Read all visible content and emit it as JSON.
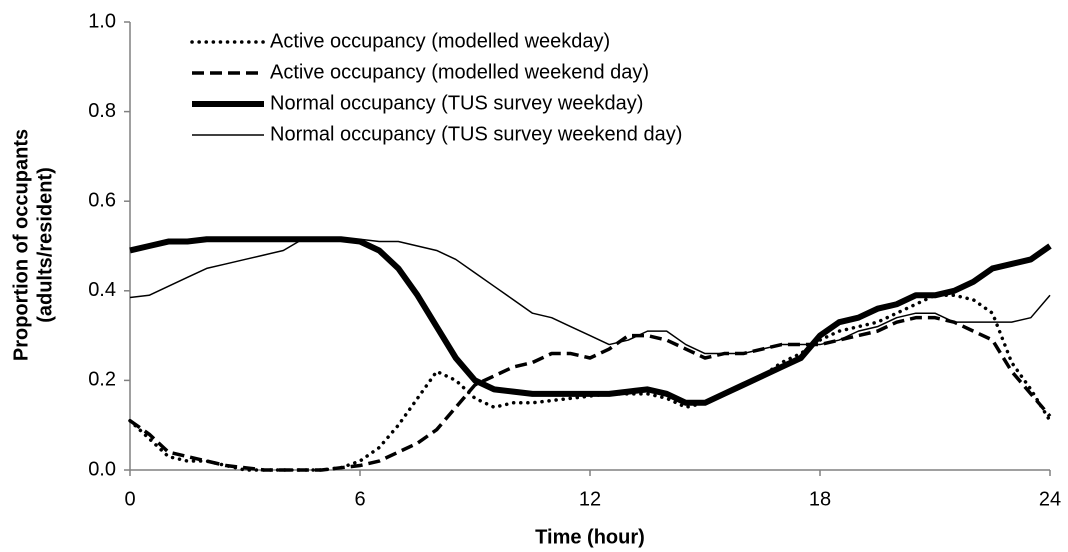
{
  "chart_data": {
    "type": "line",
    "x_label": "Time (hour)",
    "y_label": [
      "Proportion of occupants",
      "(adults/resident)"
    ],
    "x": [
      0,
      0.5,
      1,
      1.5,
      2,
      2.5,
      3,
      3.5,
      4,
      4.5,
      5,
      5.5,
      6,
      6.5,
      7,
      7.5,
      8,
      8.5,
      9,
      9.5,
      10,
      10.5,
      11,
      11.5,
      12,
      12.5,
      13,
      13.5,
      14,
      14.5,
      15,
      15.5,
      16,
      16.5,
      17,
      17.5,
      18,
      18.5,
      19,
      19.5,
      20,
      20.5,
      21,
      21.5,
      22,
      22.5,
      23,
      23.5,
      24
    ],
    "xlim": [
      0,
      24
    ],
    "xticks": [
      0,
      6,
      12,
      18,
      24
    ],
    "ylim": [
      0,
      1
    ],
    "yticks": [
      {
        "value": 0,
        "label": "0.0"
      },
      0.2,
      0.4,
      0.6,
      0.8,
      {
        "value": 1,
        "label": "1.0"
      }
    ],
    "legend": "top-left",
    "series": [
      {
        "name": "Active occupancy (modelled weekday)",
        "color": "#000000",
        "line_style": "dotted",
        "values": [
          0.11,
          0.07,
          0.03,
          0.02,
          0.02,
          0.01,
          0.0,
          0.0,
          0.0,
          0.0,
          0.0,
          0.005,
          0.02,
          0.05,
          0.1,
          0.16,
          0.22,
          0.2,
          0.16,
          0.14,
          0.15,
          0.15,
          0.155,
          0.16,
          0.165,
          0.17,
          0.17,
          0.17,
          0.16,
          0.14,
          0.15,
          0.17,
          0.19,
          0.21,
          0.24,
          0.26,
          0.29,
          0.31,
          0.32,
          0.33,
          0.35,
          0.37,
          0.39,
          0.39,
          0.38,
          0.35,
          0.24,
          0.18,
          0.11
        ]
      },
      {
        "name": "Active occupancy (modelled weekend day)",
        "color": "#000000",
        "line_style": "dashed",
        "values": [
          0.11,
          0.08,
          0.04,
          0.03,
          0.02,
          0.01,
          0.005,
          0.0,
          0.0,
          0.0,
          0.0,
          0.005,
          0.01,
          0.02,
          0.04,
          0.06,
          0.09,
          0.14,
          0.19,
          0.21,
          0.23,
          0.24,
          0.26,
          0.26,
          0.25,
          0.27,
          0.3,
          0.3,
          0.29,
          0.27,
          0.25,
          0.26,
          0.26,
          0.27,
          0.28,
          0.28,
          0.28,
          0.29,
          0.3,
          0.31,
          0.33,
          0.34,
          0.34,
          0.33,
          0.31,
          0.29,
          0.22,
          0.17,
          0.12
        ]
      },
      {
        "name": "Normal occupancy (TUS survey weekday)",
        "color": "#000000",
        "line_style": "thick",
        "values": [
          0.49,
          0.5,
          0.51,
          0.51,
          0.515,
          0.515,
          0.515,
          0.515,
          0.515,
          0.515,
          0.515,
          0.515,
          0.51,
          0.49,
          0.45,
          0.39,
          0.32,
          0.25,
          0.2,
          0.18,
          0.175,
          0.17,
          0.17,
          0.17,
          0.17,
          0.17,
          0.175,
          0.18,
          0.17,
          0.15,
          0.15,
          0.17,
          0.19,
          0.21,
          0.23,
          0.25,
          0.3,
          0.33,
          0.34,
          0.36,
          0.37,
          0.39,
          0.39,
          0.4,
          0.42,
          0.45,
          0.46,
          0.47,
          0.5
        ]
      },
      {
        "name": "Normal occupancy (TUS survey weekend day)",
        "color": "#000000",
        "line_style": "solid",
        "values": [
          0.385,
          0.39,
          0.41,
          0.43,
          0.45,
          0.46,
          0.47,
          0.48,
          0.49,
          0.515,
          0.515,
          0.515,
          0.515,
          0.51,
          0.51,
          0.5,
          0.49,
          0.47,
          0.44,
          0.41,
          0.38,
          0.35,
          0.34,
          0.32,
          0.3,
          0.28,
          0.29,
          0.31,
          0.31,
          0.28,
          0.26,
          0.26,
          0.26,
          0.27,
          0.28,
          0.28,
          0.28,
          0.29,
          0.31,
          0.32,
          0.34,
          0.35,
          0.35,
          0.33,
          0.33,
          0.33,
          0.33,
          0.34,
          0.39
        ]
      }
    ]
  }
}
